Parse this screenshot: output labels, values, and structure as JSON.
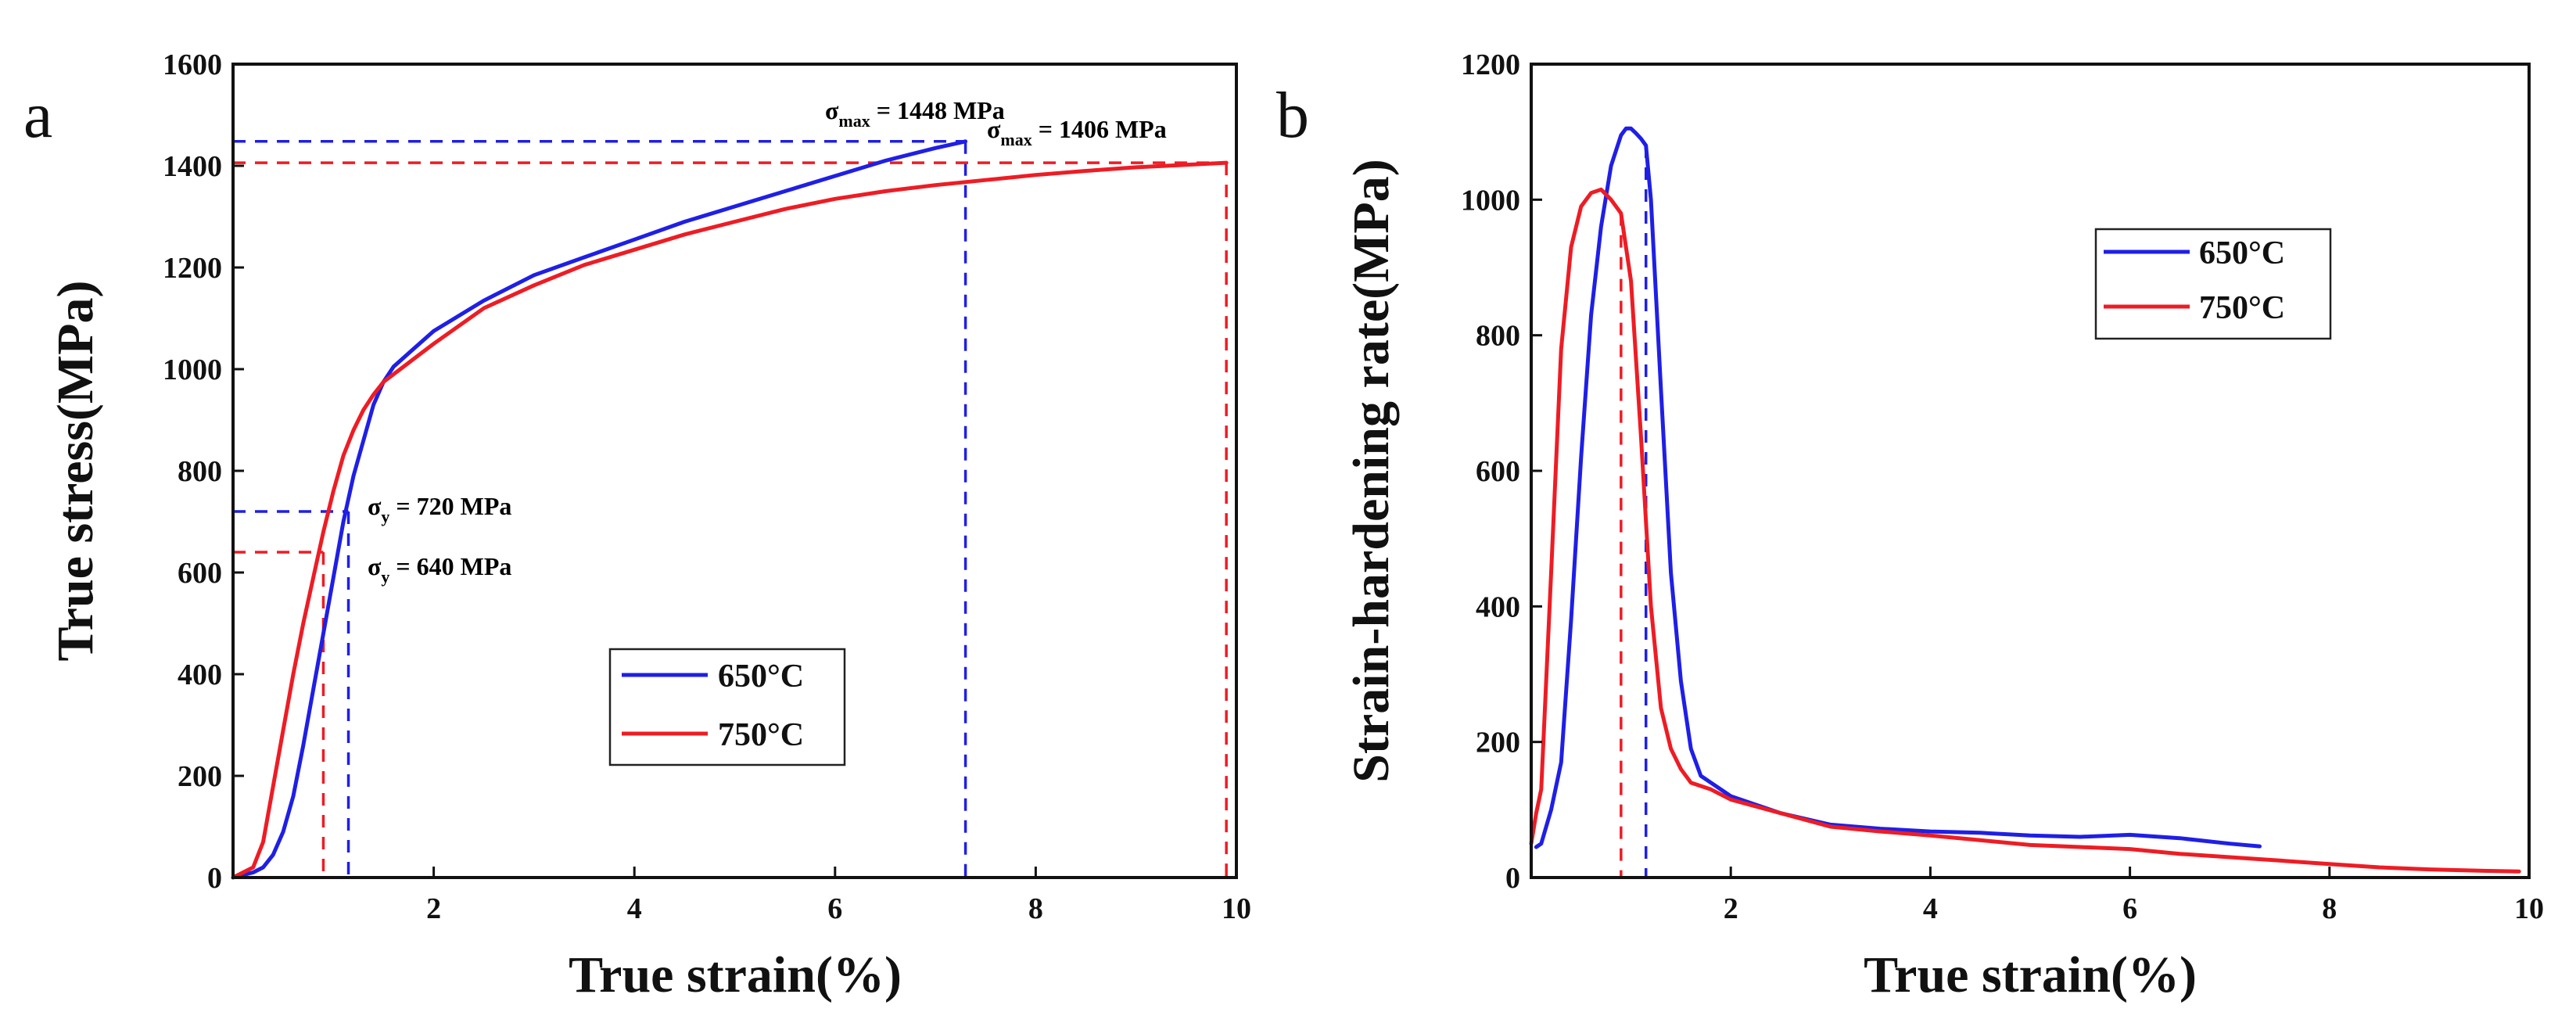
{
  "colors": {
    "series_650": "#1f1fe6",
    "series_750": "#ee1c24"
  },
  "chart_data": [
    {
      "panel_label": "a",
      "type": "line",
      "xlabel": "True strain(%)",
      "ylabel": "True stress(MPa)",
      "xlim": [
        0,
        10
      ],
      "ylim": [
        0,
        1600
      ],
      "xticks": [
        2,
        4,
        6,
        8,
        10
      ],
      "yticks": [
        0,
        200,
        400,
        600,
        800,
        1000,
        1200,
        1400,
        1600
      ],
      "grid": false,
      "legend": {
        "position": "bottom-center",
        "entries": [
          "650°C",
          "750°C"
        ]
      },
      "series": [
        {
          "name": "650°C",
          "color": "#1f1fe6",
          "x": [
            0,
            0.2,
            0.3,
            0.4,
            0.5,
            0.6,
            0.7,
            0.8,
            0.9,
            1.0,
            1.1,
            1.2,
            1.3,
            1.4,
            1.5,
            1.6,
            1.8,
            2.0,
            2.5,
            3.0,
            3.5,
            4.0,
            4.5,
            5.0,
            5.5,
            6.0,
            6.5,
            7.0,
            7.3
          ],
          "y": [
            0,
            10,
            20,
            45,
            90,
            160,
            260,
            370,
            480,
            590,
            700,
            790,
            860,
            930,
            975,
            1005,
            1040,
            1075,
            1135,
            1185,
            1220,
            1255,
            1290,
            1320,
            1350,
            1380,
            1410,
            1435,
            1448
          ]
        },
        {
          "name": "750°C",
          "color": "#ee1c24",
          "x": [
            0,
            0.2,
            0.3,
            0.4,
            0.5,
            0.6,
            0.7,
            0.8,
            0.9,
            1.0,
            1.1,
            1.2,
            1.3,
            1.4,
            1.5,
            1.6,
            1.8,
            2.0,
            2.5,
            3.0,
            3.5,
            4.0,
            4.5,
            5.0,
            5.5,
            6.0,
            6.5,
            7.0,
            7.5,
            8.0,
            8.5,
            9.0,
            9.5,
            9.9
          ],
          "y": [
            0,
            20,
            70,
            180,
            290,
            400,
            500,
            590,
            680,
            760,
            830,
            880,
            920,
            950,
            975,
            990,
            1020,
            1050,
            1120,
            1165,
            1205,
            1235,
            1265,
            1290,
            1315,
            1335,
            1350,
            1362,
            1372,
            1382,
            1390,
            1397,
            1402,
            1406
          ]
        }
      ],
      "annotations": [
        {
          "text": "σmax = 1448 MPa",
          "base": "σ",
          "subscript": "max",
          "rest": " = 1448 MPa",
          "color": "#1f1fe6",
          "x": 7.3,
          "y": 1448
        },
        {
          "text": "σmax = 1406 MPa",
          "base": "σ",
          "subscript": "max",
          "rest": " = 1406 MPa",
          "color": "#ee1c24",
          "x": 9.9,
          "y": 1406
        },
        {
          "text": "σy = 720 MPa",
          "base": "σ",
          "subscript": "y",
          "rest": " = 720 MPa",
          "color": "#1f1fe6",
          "x": 1.15,
          "y": 720
        },
        {
          "text": "σy = 640 MPa",
          "base": "σ",
          "subscript": "y",
          "rest": " = 640 MPa",
          "color": "#ee1c24",
          "x": 0.9,
          "y": 640
        }
      ]
    },
    {
      "panel_label": "b",
      "type": "line",
      "xlabel": "True strain(%)",
      "ylabel": "Strain-hardening rate(MPa)",
      "xlim": [
        0,
        10
      ],
      "ylim": [
        0,
        1200
      ],
      "xticks": [
        2,
        4,
        6,
        8,
        10
      ],
      "yticks": [
        0,
        200,
        400,
        600,
        800,
        1000,
        1200
      ],
      "grid": false,
      "legend": {
        "position": "top-center",
        "entries": [
          "650°C",
          "750°C"
        ]
      },
      "series": [
        {
          "name": "650°C",
          "color": "#1f1fe6",
          "x": [
            0.05,
            0.1,
            0.2,
            0.3,
            0.4,
            0.5,
            0.6,
            0.7,
            0.8,
            0.9,
            0.95,
            1.0,
            1.05,
            1.1,
            1.15,
            1.2,
            1.3,
            1.4,
            1.5,
            1.6,
            1.7,
            1.8,
            2.0,
            2.5,
            3.0,
            3.5,
            4.0,
            4.5,
            5.0,
            5.5,
            6.0,
            6.5,
            7.0,
            7.3
          ],
          "y": [
            45,
            50,
            100,
            170,
            380,
            620,
            830,
            960,
            1050,
            1095,
            1105,
            1105,
            1098,
            1090,
            1080,
            1000,
            720,
            450,
            290,
            190,
            150,
            140,
            120,
            95,
            78,
            72,
            68,
            66,
            62,
            60,
            63,
            58,
            50,
            46
          ]
        },
        {
          "name": "750°C",
          "color": "#ee1c24",
          "x": [
            0.0,
            0.05,
            0.1,
            0.2,
            0.3,
            0.4,
            0.5,
            0.6,
            0.7,
            0.8,
            0.9,
            1.0,
            1.1,
            1.2,
            1.3,
            1.4,
            1.5,
            1.6,
            1.8,
            2.0,
            2.5,
            3.0,
            3.5,
            4.0,
            4.5,
            5.0,
            5.5,
            6.0,
            6.5,
            7.0,
            7.5,
            8.0,
            8.5,
            9.0,
            9.5,
            9.9
          ],
          "y": [
            50,
            95,
            130,
            450,
            780,
            930,
            990,
            1010,
            1015,
            1000,
            980,
            880,
            650,
            400,
            250,
            190,
            160,
            140,
            130,
            115,
            95,
            75,
            68,
            62,
            55,
            48,
            45,
            42,
            35,
            30,
            25,
            20,
            15,
            12,
            10,
            9
          ]
        }
      ],
      "annotations": [
        {
          "color": "#ee1c24",
          "x": 0.9
        },
        {
          "color": "#1f1fe6",
          "x": 1.15
        }
      ]
    }
  ]
}
